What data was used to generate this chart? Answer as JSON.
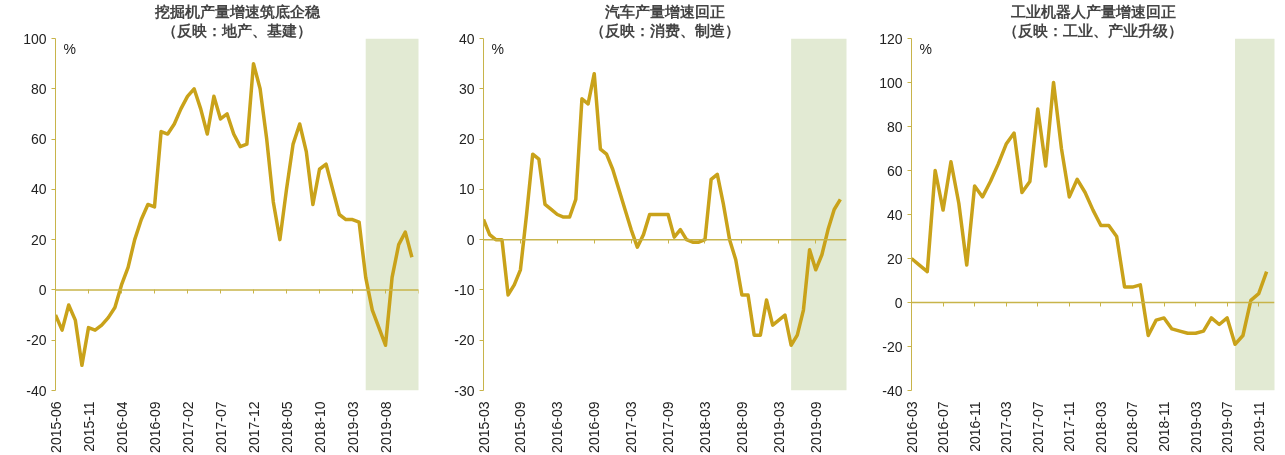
{
  "chart_data": [
    {
      "type": "line",
      "title": "挖掘机产量增速筑底企稳",
      "subtitle": "（反映：地产、基建）",
      "ylabel": "%",
      "color": "#c9a21a",
      "grid": false,
      "x": [
        "2015-06",
        "2015-07",
        "2015-08",
        "2015-09",
        "2015-10",
        "2015-11",
        "2015-12",
        "2016-01",
        "2016-02",
        "2016-03",
        "2016-04",
        "2016-05",
        "2016-06",
        "2016-07",
        "2016-08",
        "2016-09",
        "2016-10",
        "2016-11",
        "2016-12",
        "2017-01",
        "2017-02",
        "2017-03",
        "2017-04",
        "2017-05",
        "2017-06",
        "2017-07",
        "2017-08",
        "2017-09",
        "2017-10",
        "2017-11",
        "2017-12",
        "2018-01",
        "2018-02",
        "2018-03",
        "2018-04",
        "2018-05",
        "2018-06",
        "2018-07",
        "2018-08",
        "2018-09",
        "2018-10",
        "2018-11",
        "2018-12",
        "2019-01",
        "2019-02",
        "2019-03",
        "2019-04",
        "2019-05",
        "2019-06",
        "2019-07",
        "2019-08",
        "2019-09",
        "2019-10",
        "2019-11",
        "2019-12"
      ],
      "values": [
        -10,
        -16,
        -6,
        -12,
        -30,
        -15,
        -16,
        -14,
        -11,
        -7,
        2,
        9,
        20,
        28,
        34,
        33,
        63,
        62,
        66,
        72,
        77,
        80,
        72,
        62,
        77,
        68,
        70,
        62,
        57,
        58,
        90,
        80,
        60,
        35,
        20,
        40,
        58,
        66,
        55,
        34,
        48,
        50,
        40,
        30,
        28,
        28,
        27,
        5,
        -8,
        -15,
        -22,
        5,
        18,
        23,
        13
      ],
      "xlim": [
        "2015-06",
        "2020-01"
      ],
      "xticks": [
        "2015-06",
        "2015-11",
        "2016-04",
        "2016-09",
        "2017-02",
        "2017-07",
        "2017-12",
        "2018-05",
        "2018-10",
        "2019-03",
        "2019-08",
        {
          "value": "2020-01",
          "label": null
        }
      ],
      "ylim": [
        -40,
        100
      ],
      "yticks": [
        -40,
        -20,
        0,
        20,
        40,
        60,
        80,
        100
      ],
      "ref_lines": [
        {
          "axis": "y",
          "value": 0,
          "color": "#c8b44a"
        }
      ],
      "bands": [
        {
          "axis": "x",
          "from": "2019-05",
          "to": "2020-02",
          "color": "#e2ead3"
        }
      ]
    },
    {
      "type": "line",
      "title": "汽车产量增速回正",
      "subtitle": "（反映：消费、制造）",
      "ylabel": "%",
      "color": "#c9a21a",
      "grid": false,
      "x": [
        "2015-03",
        "2015-04",
        "2015-05",
        "2015-06",
        "2015-07",
        "2015-08",
        "2015-09",
        "2015-10",
        "2015-11",
        "2015-12",
        "2016-01",
        "2016-02",
        "2016-03",
        "2016-04",
        "2016-05",
        "2016-06",
        "2016-07",
        "2016-08",
        "2016-09",
        "2016-10",
        "2016-11",
        "2016-12",
        "2017-01",
        "2017-02",
        "2017-03",
        "2017-04",
        "2017-05",
        "2017-06",
        "2017-07",
        "2017-08",
        "2017-09",
        "2017-10",
        "2017-11",
        "2017-12",
        "2018-01",
        "2018-02",
        "2018-03",
        "2018-04",
        "2018-05",
        "2018-06",
        "2018-07",
        "2018-08",
        "2018-09",
        "2018-10",
        "2018-11",
        "2018-12",
        "2019-01",
        "2019-02",
        "2019-03",
        "2019-04",
        "2019-05",
        "2019-06",
        "2019-07",
        "2019-08",
        "2019-09",
        "2019-10",
        "2019-11",
        "2019-12",
        "2020-01"
      ],
      "values": [
        4,
        1,
        0,
        0,
        -11,
        -9,
        -6,
        5,
        17,
        16,
        7,
        6,
        5,
        4.5,
        4.5,
        8,
        28,
        27,
        33,
        18,
        17,
        14,
        10,
        6,
        2,
        -1.5,
        1,
        5,
        5,
        5,
        5,
        0.5,
        2,
        0,
        -0.5,
        -0.5,
        0,
        12,
        13,
        7,
        0,
        -4,
        -11,
        -11,
        -19,
        -19,
        -12,
        -17,
        -16,
        -15,
        -21,
        -19,
        -14,
        -2,
        -6,
        -3,
        2,
        6,
        8
      ],
      "xlim": [
        "2015-03",
        "2020-02"
      ],
      "xticks": [
        "2015-03",
        "2015-09",
        "2016-03",
        "2016-09",
        "2017-03",
        "2017-09",
        "2018-03",
        "2018-09",
        "2019-03",
        "2019-09"
      ],
      "ylim": [
        -30,
        40
      ],
      "yticks": [
        -30,
        -20,
        -10,
        0,
        10,
        20,
        30,
        40
      ],
      "ref_lines": [
        {
          "axis": "y",
          "value": 0,
          "color": "#c8b44a"
        }
      ],
      "bands": [
        {
          "axis": "x",
          "from": "2019-05",
          "to": "2020-03",
          "color": "#e2ead3"
        }
      ]
    },
    {
      "type": "line",
      "title": "工业机器人产量增速回正",
      "subtitle": "（反映：工业、产业升级）",
      "ylabel": "%",
      "color": "#c9a21a",
      "grid": false,
      "x": [
        "2016-03",
        "2016-04",
        "2016-05",
        "2016-06",
        "2016-07",
        "2016-08",
        "2016-09",
        "2016-10",
        "2016-11",
        "2016-12",
        "2017-01",
        "2017-02",
        "2017-03",
        "2017-04",
        "2017-05",
        "2017-06",
        "2017-07",
        "2017-08",
        "2017-09",
        "2017-10",
        "2017-11",
        "2017-12",
        "2018-01",
        "2018-02",
        "2018-03",
        "2018-04",
        "2018-05",
        "2018-06",
        "2018-07",
        "2018-08",
        "2018-09",
        "2018-10",
        "2018-11",
        "2018-12",
        "2019-01",
        "2019-02",
        "2019-03",
        "2019-04",
        "2019-05",
        "2019-06",
        "2019-07",
        "2019-08",
        "2019-09",
        "2019-10",
        "2019-11",
        "2019-12"
      ],
      "values": [
        20,
        17,
        14,
        60,
        42,
        64,
        45,
        17,
        53,
        48,
        55,
        63,
        72,
        77,
        50,
        55,
        88,
        62,
        100,
        70,
        48,
        56,
        50,
        42,
        35,
        35,
        30,
        7,
        7,
        8,
        -15,
        -8,
        -7,
        -12,
        -13,
        -14,
        -14,
        -13,
        -7,
        -10,
        -7,
        -19,
        -15,
        1,
        4,
        14
      ],
      "xlim": [
        "2016-03",
        "2020-01"
      ],
      "xticks": [
        "2016-03",
        "2016-07",
        "2016-11",
        "2017-03",
        "2017-07",
        "2017-11",
        "2018-03",
        "2018-07",
        "2018-11",
        "2019-03",
        "2019-07",
        "2019-11"
      ],
      "ylim": [
        -40,
        120
      ],
      "yticks": [
        -40,
        -20,
        0,
        20,
        40,
        60,
        80,
        100,
        120
      ],
      "ref_lines": [
        {
          "axis": "y",
          "value": 0,
          "color": "#c8b44a"
        }
      ],
      "bands": [
        {
          "axis": "x",
          "from": "2019-08",
          "to": "2020-02",
          "color": "#e2ead3"
        }
      ]
    }
  ]
}
